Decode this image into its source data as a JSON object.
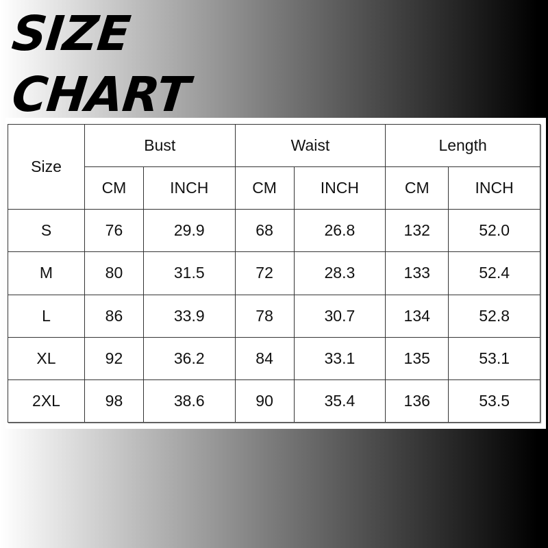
{
  "title": [
    "SIZE",
    "CHART"
  ],
  "table": {
    "size_header": "Size",
    "groups": [
      "Bust",
      "Waist",
      "Length"
    ],
    "units": [
      "CM",
      "INCH",
      "CM",
      "INCH",
      "CM",
      "INCH"
    ],
    "rows": [
      [
        "S",
        "76",
        "29.9",
        "68",
        "26.8",
        "132",
        "52.0"
      ],
      [
        "M",
        "80",
        "31.5",
        "72",
        "28.3",
        "133",
        "52.4"
      ],
      [
        "L",
        "86",
        "33.9",
        "78",
        "30.7",
        "134",
        "52.8"
      ],
      [
        "XL",
        "92",
        "36.2",
        "84",
        "33.1",
        "135",
        "53.1"
      ],
      [
        "2XL",
        "98",
        "38.6",
        "90",
        "35.4",
        "136",
        "53.5"
      ]
    ]
  },
  "colors": {
    "gradient_start": "#ffffff",
    "gradient_end": "#000000"
  }
}
